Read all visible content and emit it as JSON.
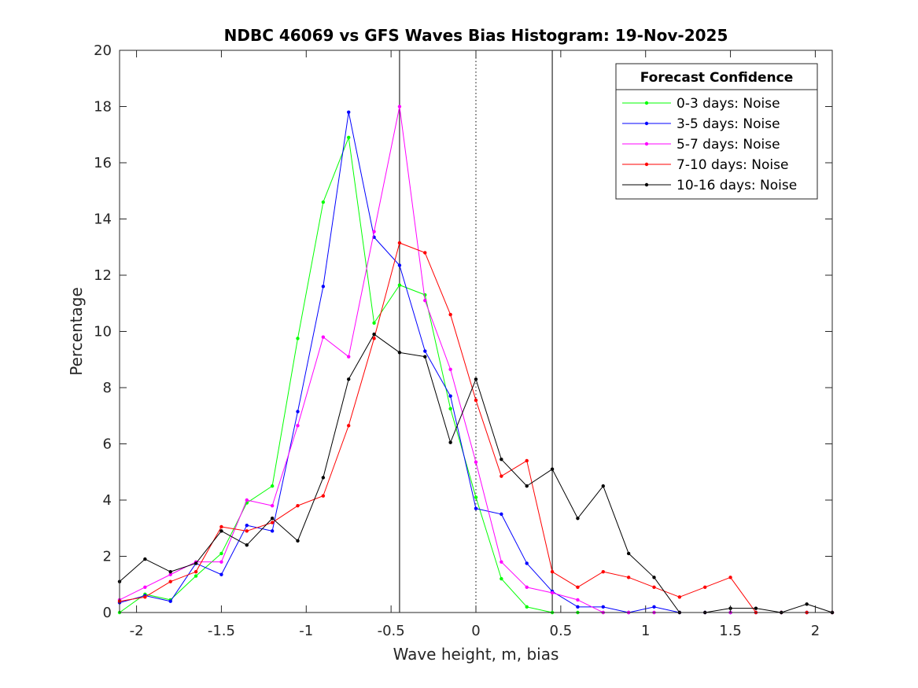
{
  "chart_data": {
    "type": "line",
    "title": "NDBC 46069 vs GFS Waves Bias Histogram: 19-Nov-2025",
    "xlabel": "Wave height, m, bias",
    "ylabel": "Percentage",
    "xlim": [
      -2.1,
      2.1
    ],
    "ylim": [
      0,
      20
    ],
    "xticks": [
      -2,
      -1.5,
      -1,
      -0.5,
      0,
      0.5,
      1,
      1.5,
      2
    ],
    "xtick_labels": [
      "-2",
      "-1.5",
      "-1",
      "-0.5",
      "0",
      "0.5",
      "1",
      "1.5",
      "2"
    ],
    "yticks": [
      0,
      2,
      4,
      6,
      8,
      10,
      12,
      14,
      16,
      18,
      20
    ],
    "ytick_labels": [
      "0",
      "2",
      "4",
      "6",
      "8",
      "10",
      "12",
      "14",
      "16",
      "18",
      "20"
    ],
    "vlines": [
      {
        "x": -0.45,
        "style": "solid"
      },
      {
        "x": 0,
        "style": "dotted"
      },
      {
        "x": 0.45,
        "style": "solid"
      }
    ],
    "legend": {
      "title": "Forecast Confidence",
      "position": "top-right"
    },
    "x": [
      -2.1,
      -1.95,
      -1.8,
      -1.65,
      -1.5,
      -1.35,
      -1.2,
      -1.05,
      -0.9,
      -0.75,
      -0.6,
      -0.45,
      -0.3,
      -0.15,
      0,
      0.15,
      0.3,
      0.45,
      0.6,
      0.75,
      0.9,
      1.05,
      1.2,
      1.35,
      1.5,
      1.65,
      1.8,
      1.95,
      2.1
    ],
    "series": [
      {
        "name": "0-3 days: Noise",
        "color": "#00ff00",
        "values": [
          0,
          0.65,
          0.45,
          1.3,
          2.1,
          3.9,
          4.5,
          9.75,
          14.6,
          16.9,
          10.3,
          11.65,
          11.3,
          7.25,
          4.1,
          1.2,
          0.2,
          0,
          0,
          0,
          0,
          0,
          0,
          0,
          0,
          0,
          0,
          0,
          0
        ]
      },
      {
        "name": "3-5 days: Noise",
        "color": "#0000ff",
        "values": [
          0.35,
          0.6,
          0.4,
          1.75,
          1.35,
          3.1,
          2.9,
          7.15,
          11.6,
          17.8,
          13.35,
          12.35,
          9.3,
          7.7,
          3.7,
          3.5,
          1.75,
          0.75,
          0.2,
          0.2,
          0,
          0.2,
          0,
          0,
          0,
          0,
          0,
          0,
          0
        ]
      },
      {
        "name": "5-7 days: Noise",
        "color": "#ff00ff",
        "values": [
          0.45,
          0.9,
          1.35,
          1.8,
          1.8,
          4.0,
          3.8,
          6.65,
          9.8,
          9.1,
          13.55,
          18.0,
          11.1,
          8.65,
          5.35,
          1.8,
          0.9,
          0.7,
          0.45,
          0,
          0,
          0,
          0,
          0,
          0,
          0,
          0,
          0,
          0
        ]
      },
      {
        "name": "7-10 days: Noise",
        "color": "#ff0000",
        "values": [
          0.4,
          0.55,
          1.1,
          1.45,
          3.05,
          2.9,
          3.2,
          3.8,
          4.15,
          6.65,
          9.75,
          13.15,
          12.8,
          10.6,
          7.55,
          4.85,
          5.4,
          1.45,
          0.9,
          1.45,
          1.25,
          0.9,
          0.55,
          0.9,
          1.25,
          0,
          0,
          0,
          0
        ]
      },
      {
        "name": "10-16 days: Noise",
        "color": "#000000",
        "values": [
          1.1,
          1.9,
          1.45,
          1.75,
          2.9,
          2.4,
          3.35,
          2.55,
          4.8,
          8.3,
          9.9,
          9.25,
          9.1,
          6.05,
          8.3,
          5.45,
          4.5,
          5.1,
          3.35,
          4.5,
          2.1,
          1.25,
          0,
          0,
          0.15,
          0.15,
          0,
          0.3,
          0
        ]
      }
    ]
  }
}
